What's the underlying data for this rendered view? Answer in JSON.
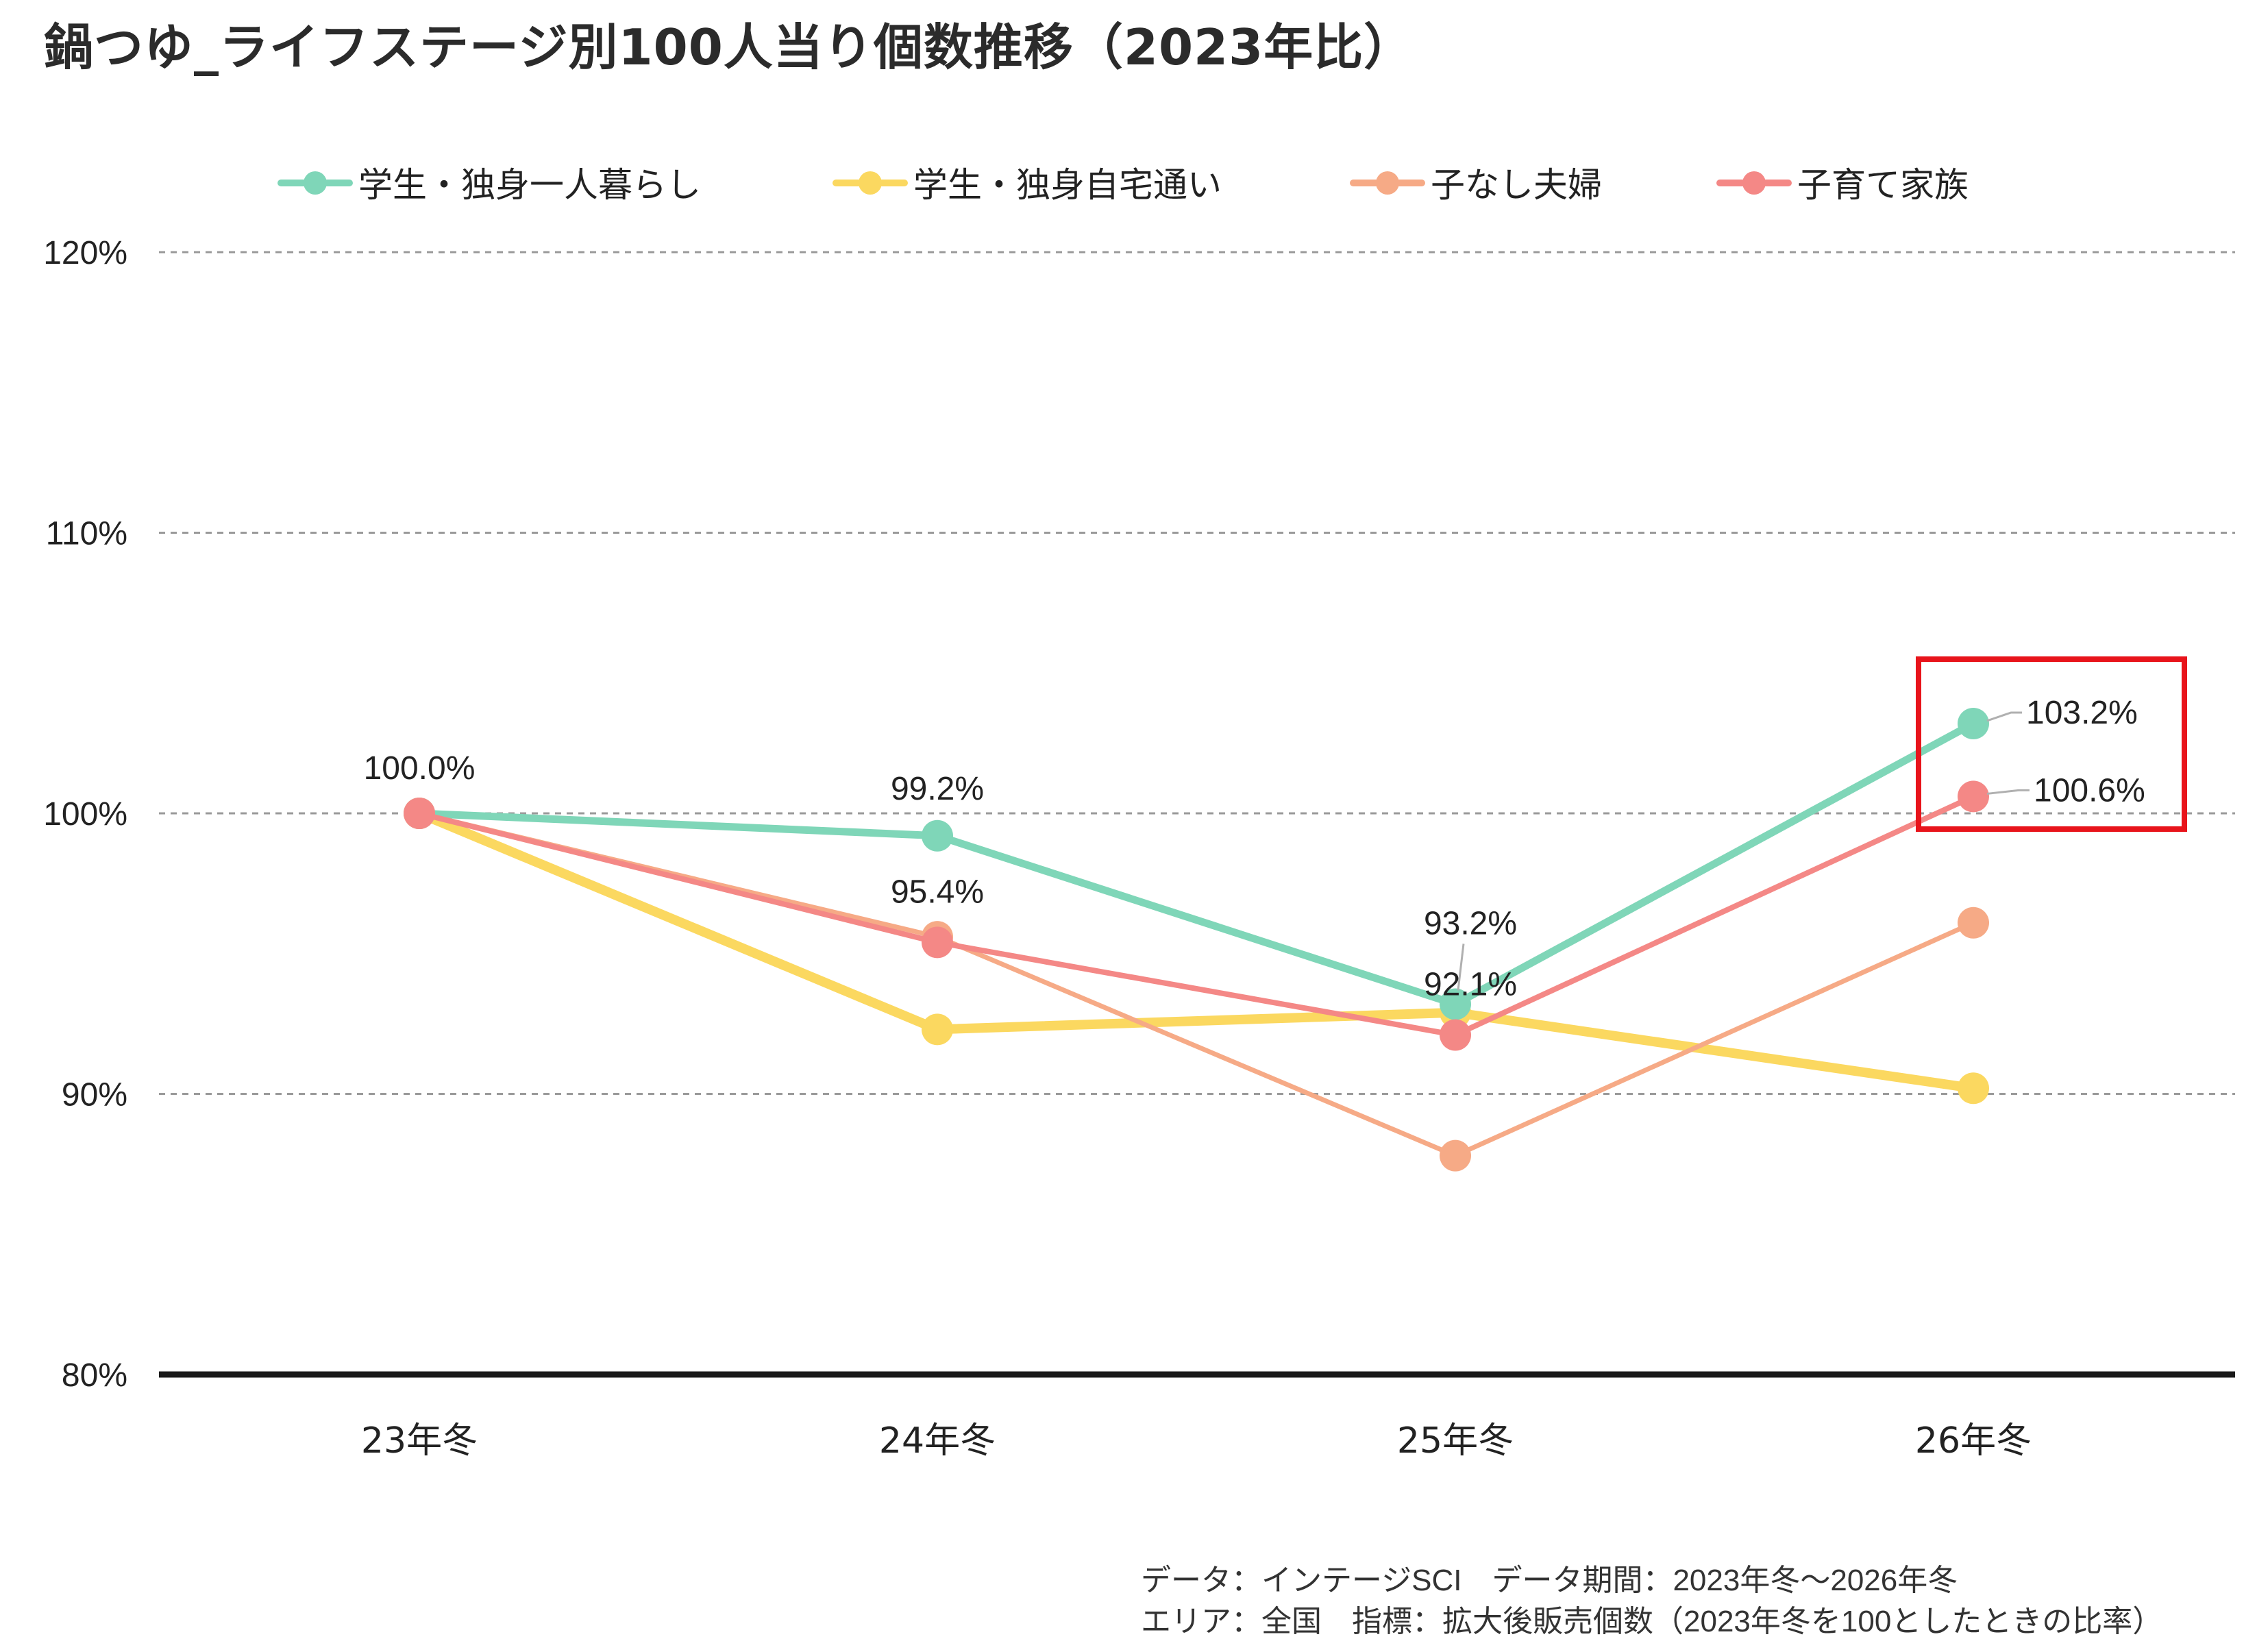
{
  "title": "鍋つゆ_ライフステージ別100人当り個数推移（2023年比）",
  "legend": [
    {
      "label": "学生・独身一人暮らし",
      "color": "#7fd6b8"
    },
    {
      "label": "学生・独身自宅通い",
      "color": "#fbd860"
    },
    {
      "label": "子なし夫婦",
      "color": "#f6aa86"
    },
    {
      "label": "子育て家族",
      "color": "#f48886"
    }
  ],
  "footnote": {
    "line1": "データ：インテージSCI　データ期間：2023年冬〜2026年冬",
    "line2": "エリア：全国　指標：拡大後販売個数（2023年冬を100としたときの比率）"
  },
  "highlight_color": "#e8141b",
  "chart_data": {
    "type": "line",
    "title": "鍋つゆ_ライフステージ別100人当り個数推移（2023年比）",
    "xlabel": "",
    "ylabel": "",
    "categories": [
      "23年冬",
      "24年冬",
      "25年冬",
      "26年冬"
    ],
    "ylim": [
      80,
      120
    ],
    "yticks": [
      80,
      90,
      100,
      110,
      120
    ],
    "ytick_labels": [
      "80%",
      "90%",
      "100%",
      "110%",
      "120%"
    ],
    "grid": true,
    "legend_position": "top",
    "series": [
      {
        "name": "学生・独身一人暮らし",
        "color": "#7fd6b8",
        "values": [
          100.0,
          99.2,
          93.2,
          103.2
        ]
      },
      {
        "name": "学生・独身自宅通い",
        "color": "#fbd860",
        "values": [
          100.0,
          92.3,
          92.9,
          90.2
        ]
      },
      {
        "name": "子なし夫婦",
        "color": "#f6aa86",
        "values": [
          100.0,
          95.6,
          87.8,
          96.1
        ]
      },
      {
        "name": "子育て家族",
        "color": "#f48886",
        "values": [
          100.0,
          95.4,
          92.1,
          100.6
        ]
      }
    ],
    "annotations": [
      {
        "text": "100.0%",
        "x": "23年冬",
        "y": 100.0
      },
      {
        "text": "99.2%",
        "x": "24年冬",
        "y": 99.2
      },
      {
        "text": "95.4%",
        "x": "24年冬",
        "y": 95.4
      },
      {
        "text": "93.2%",
        "x": "25年冬",
        "y": 93.2
      },
      {
        "text": "92.1%",
        "x": "25年冬",
        "y": 92.1
      },
      {
        "text": "103.2%",
        "x": "26年冬",
        "y": 103.2
      },
      {
        "text": "100.6%",
        "x": "26年冬",
        "y": 100.6
      }
    ]
  }
}
